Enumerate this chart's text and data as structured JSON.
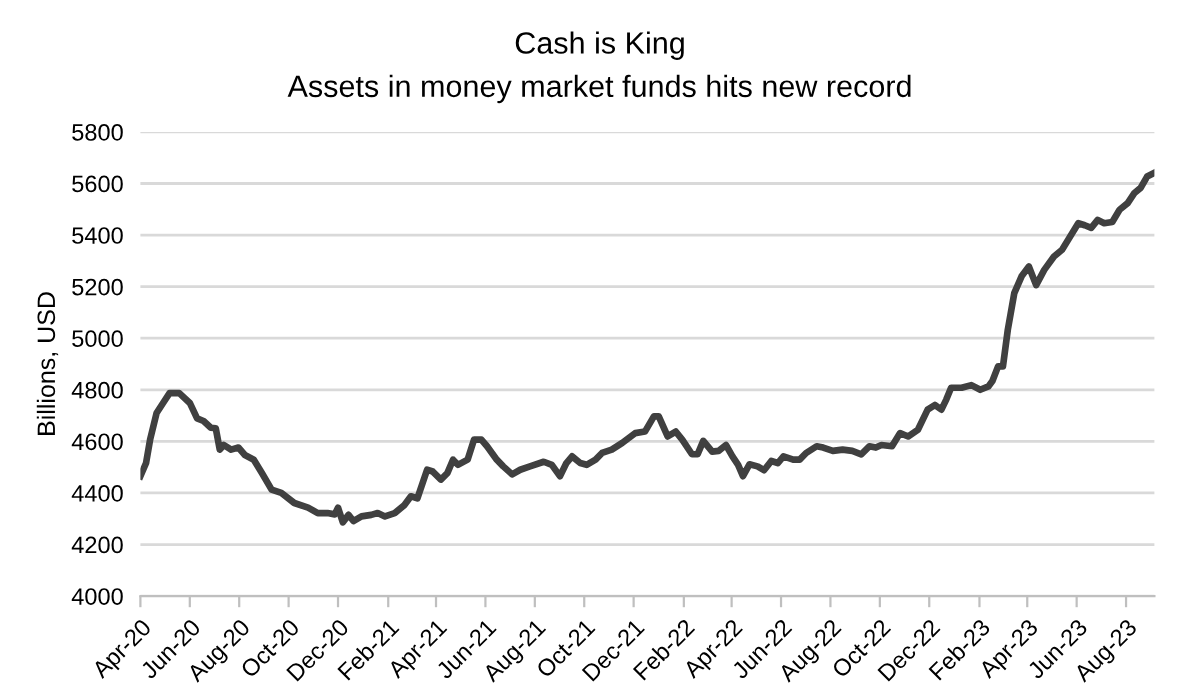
{
  "chart_data": {
    "type": "line",
    "title": "Cash is King",
    "subtitle": "Assets in money market funds hits new record",
    "ylabel": "Billions, USD",
    "x": [
      "2020-04-01",
      "2020-04-08",
      "2020-04-13",
      "2020-04-21",
      "2020-04-29",
      "2020-05-07",
      "2020-05-19",
      "2020-06-01",
      "2020-06-10",
      "2020-06-18",
      "2020-06-27",
      "2020-07-03",
      "2020-07-08",
      "2020-07-13",
      "2020-07-22",
      "2020-07-31",
      "2020-08-08",
      "2020-08-19",
      "2020-08-29",
      "2020-09-10",
      "2020-09-22",
      "2020-10-08",
      "2020-10-25",
      "2020-11-06",
      "2020-11-18",
      "2020-11-27",
      "2020-12-01",
      "2020-12-07",
      "2020-12-14",
      "2020-12-20",
      "2020-12-30",
      "2021-01-11",
      "2021-01-19",
      "2021-01-28",
      "2021-02-09",
      "2021-02-21",
      "2021-03-01",
      "2021-03-09",
      "2021-03-21",
      "2021-03-28",
      "2021-04-07",
      "2021-04-15",
      "2021-04-22",
      "2021-04-28",
      "2021-05-10",
      "2021-05-18",
      "2021-05-27",
      "2021-06-03",
      "2021-06-15",
      "2021-06-23",
      "2021-07-04",
      "2021-07-14",
      "2021-07-26",
      "2021-08-12",
      "2021-08-22",
      "2021-09-01",
      "2021-09-09",
      "2021-09-16",
      "2021-09-26",
      "2021-10-04",
      "2021-10-15",
      "2021-10-23",
      "2021-11-04",
      "2021-11-17",
      "2021-12-03",
      "2021-12-15",
      "2021-12-26",
      "2022-01-01",
      "2022-01-12",
      "2022-01-22",
      "2022-01-30",
      "2022-02-11",
      "2022-02-18",
      "2022-02-25",
      "2022-03-08",
      "2022-03-16",
      "2022-03-25",
      "2022-04-02",
      "2022-04-09",
      "2022-04-15",
      "2022-04-23",
      "2022-05-03",
      "2022-05-11",
      "2022-05-20",
      "2022-05-28",
      "2022-06-04",
      "2022-06-16",
      "2022-06-24",
      "2022-07-02",
      "2022-07-15",
      "2022-07-23",
      "2022-08-04",
      "2022-08-16",
      "2022-08-28",
      "2022-09-08",
      "2022-09-18",
      "2022-09-26",
      "2022-10-03",
      "2022-10-16",
      "2022-10-26",
      "2022-11-05",
      "2022-11-17",
      "2022-11-29",
      "2022-12-08",
      "2022-12-16",
      "2022-12-22",
      "2022-12-28",
      "2023-01-10",
      "2023-01-22",
      "2023-02-02",
      "2023-02-12",
      "2023-02-17",
      "2023-02-24",
      "2023-03-02",
      "2023-03-08",
      "2023-03-16",
      "2023-03-25",
      "2023-04-03",
      "2023-04-12",
      "2023-04-22",
      "2023-05-04",
      "2023-05-14",
      "2023-05-24",
      "2023-06-03",
      "2023-06-11",
      "2023-06-19",
      "2023-06-27",
      "2023-07-05",
      "2023-07-15",
      "2023-07-24",
      "2023-08-03",
      "2023-08-11",
      "2023-08-19",
      "2023-08-27",
      "2023-09-04"
    ],
    "series": [
      {
        "color": "#404040",
        "values": [
          4465,
          4516,
          4607,
          4710,
          4749,
          4787,
          4787,
          4749,
          4689,
          4679,
          4653,
          4651,
          4568,
          4586,
          4568,
          4576,
          4547,
          4529,
          4477,
          4413,
          4400,
          4361,
          4343,
          4322,
          4322,
          4317,
          4343,
          4286,
          4315,
          4291,
          4309,
          4315,
          4322,
          4309,
          4322,
          4353,
          4387,
          4379,
          4490,
          4483,
          4452,
          4477,
          4529,
          4509,
          4529,
          4607,
          4607,
          4581,
          4529,
          4503,
          4472,
          4490,
          4503,
          4521,
          4509,
          4465,
          4516,
          4542,
          4516,
          4509,
          4529,
          4555,
          4568,
          4594,
          4632,
          4638,
          4697,
          4697,
          4619,
          4638,
          4607,
          4550,
          4550,
          4602,
          4560,
          4563,
          4586,
          4542,
          4509,
          4465,
          4511,
          4503,
          4488,
          4524,
          4516,
          4542,
          4529,
          4529,
          4555,
          4581,
          4576,
          4563,
          4568,
          4563,
          4550,
          4581,
          4576,
          4586,
          4581,
          4632,
          4619,
          4645,
          4723,
          4741,
          4723,
          4762,
          4808,
          4808,
          4818,
          4800,
          4813,
          4834,
          4891,
          4891,
          5033,
          5175,
          5240,
          5278,
          5206,
          5265,
          5317,
          5343,
          5394,
          5446,
          5438,
          5428,
          5459,
          5446,
          5451,
          5498,
          5524,
          5562,
          5583,
          5627,
          5640
        ]
      }
    ],
    "xlim": [
      "2020-04-01",
      "2023-09-05"
    ],
    "xticks": [
      {
        "value": "2020-04-01",
        "label": "Apr-20"
      },
      {
        "value": "2020-06-01",
        "label": "Jun-20"
      },
      {
        "value": "2020-08-01",
        "label": "Aug-20"
      },
      {
        "value": "2020-10-01",
        "label": "Oct-20"
      },
      {
        "value": "2020-12-01",
        "label": "Dec-20"
      },
      {
        "value": "2021-02-01",
        "label": "Feb-21"
      },
      {
        "value": "2021-04-01",
        "label": "Apr-21"
      },
      {
        "value": "2021-06-01",
        "label": "Jun-21"
      },
      {
        "value": "2021-08-01",
        "label": "Aug-21"
      },
      {
        "value": "2021-10-01",
        "label": "Oct-21"
      },
      {
        "value": "2021-12-01",
        "label": "Dec-21"
      },
      {
        "value": "2022-02-01",
        "label": "Feb-22"
      },
      {
        "value": "2022-04-01",
        "label": "Apr-22"
      },
      {
        "value": "2022-06-01",
        "label": "Jun-22"
      },
      {
        "value": "2022-08-01",
        "label": "Aug-22"
      },
      {
        "value": "2022-10-01",
        "label": "Oct-22"
      },
      {
        "value": "2022-12-01",
        "label": "Dec-22"
      },
      {
        "value": "2023-02-01",
        "label": "Feb-23"
      },
      {
        "value": "2023-04-01",
        "label": "Apr-23"
      },
      {
        "value": "2023-06-01",
        "label": "Jun-23"
      },
      {
        "value": "2023-08-01",
        "label": "Aug-23"
      }
    ],
    "ylim": [
      4000,
      5800
    ],
    "yticks": [
      4000,
      4200,
      4400,
      4600,
      4800,
      5000,
      5200,
      5400,
      5600,
      5800
    ],
    "grid": "y",
    "legend": false,
    "marker": "none",
    "line_style": "solid"
  }
}
